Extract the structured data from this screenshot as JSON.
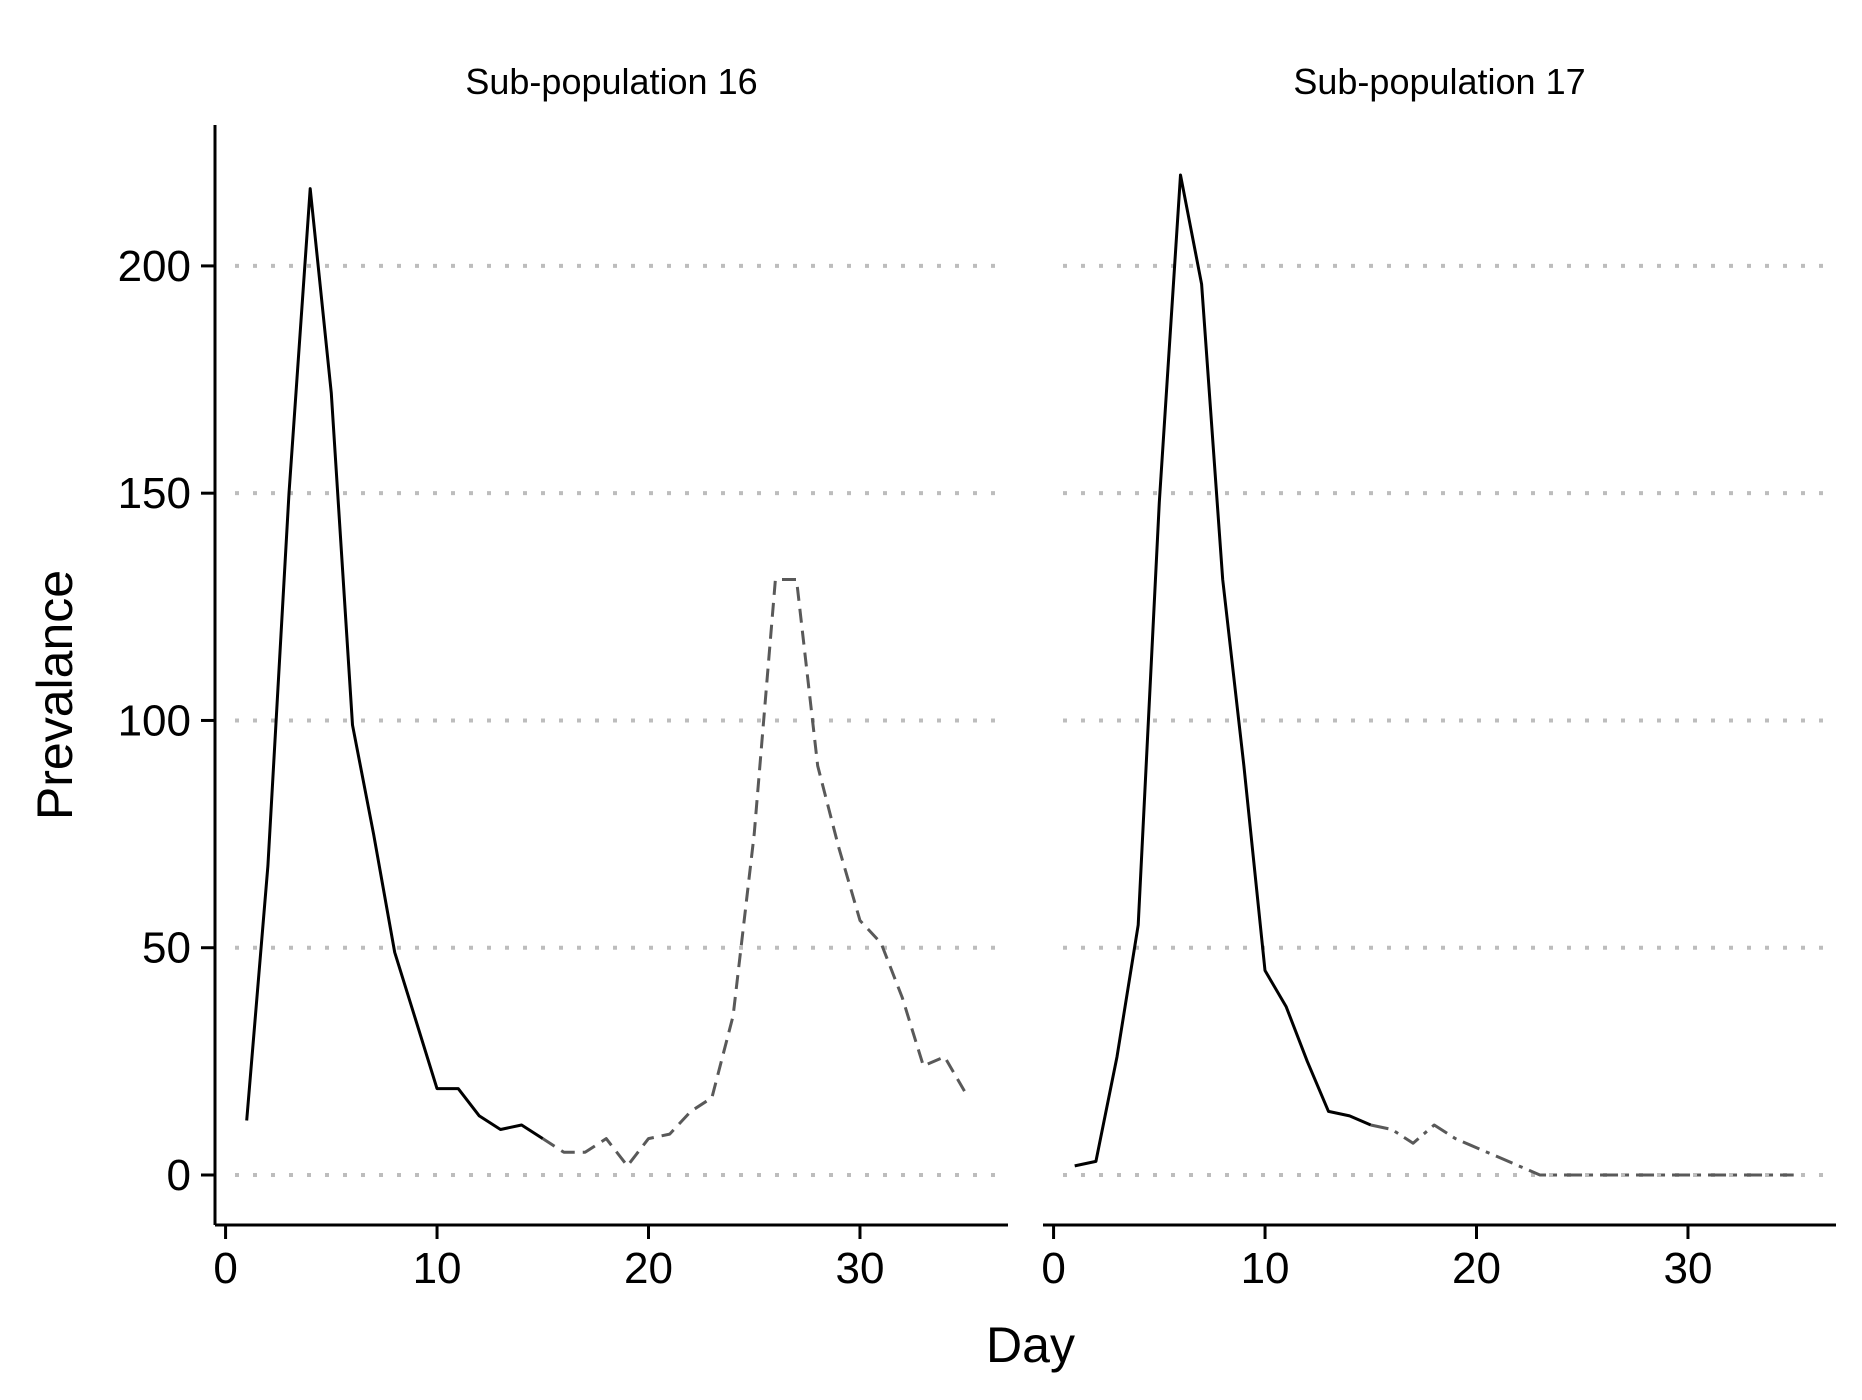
{
  "chart_data": {
    "type": "line",
    "xlabel": "Day",
    "ylabel": "Prevalance",
    "xlim": [
      -0.5,
      37
    ],
    "ylim": [
      -11,
      231
    ],
    "x_ticks": [
      0,
      10,
      20,
      30
    ],
    "y_ticks": [
      0,
      50,
      100,
      150,
      200
    ],
    "grid": "horizontal dotted",
    "panels": [
      {
        "label": "Sub-population  16",
        "series": [
          {
            "style": "solid",
            "color": "#000000",
            "x": [
              1,
              2,
              3,
              4,
              5,
              6,
              7,
              8,
              9,
              10,
              11,
              12,
              13,
              14,
              15
            ],
            "y": [
              12,
              68,
              150,
              217,
              172,
              99,
              75,
              49,
              34,
              19,
              19,
              13,
              10,
              11,
              8
            ]
          },
          {
            "style": "dashed",
            "color": "#595959",
            "x": [
              15,
              16,
              17,
              18,
              19,
              20,
              21,
              22,
              23,
              24,
              25,
              26,
              27,
              28,
              29,
              30,
              31,
              32,
              33,
              34,
              35
            ],
            "y": [
              8,
              5,
              5,
              8,
              2,
              8,
              9,
              14,
              17,
              35,
              75,
              131,
              131,
              90,
              72,
              56,
              51,
              39,
              24,
              26,
              18
            ]
          }
        ]
      },
      {
        "label": "Sub-population  17",
        "series": [
          {
            "style": "solid",
            "color": "#000000",
            "x": [
              1,
              2,
              3,
              4,
              5,
              6,
              7,
              8,
              9,
              10,
              11,
              12,
              13,
              14,
              15
            ],
            "y": [
              2,
              3,
              26,
              55,
              148,
              220,
              196,
              131,
              90,
              45,
              37,
              25,
              14,
              13,
              11
            ]
          },
          {
            "style": "dashdot",
            "color": "#595959",
            "x": [
              15,
              16,
              17,
              18,
              19,
              20,
              21,
              22,
              23,
              24,
              25,
              26,
              27,
              28,
              29,
              30,
              31,
              32,
              33,
              34,
              35
            ],
            "y": [
              11,
              10,
              7,
              11,
              8,
              6,
              4,
              2,
              0,
              0,
              0,
              0,
              0,
              0,
              0,
              0,
              0,
              0,
              0,
              0,
              0
            ]
          }
        ]
      }
    ]
  }
}
